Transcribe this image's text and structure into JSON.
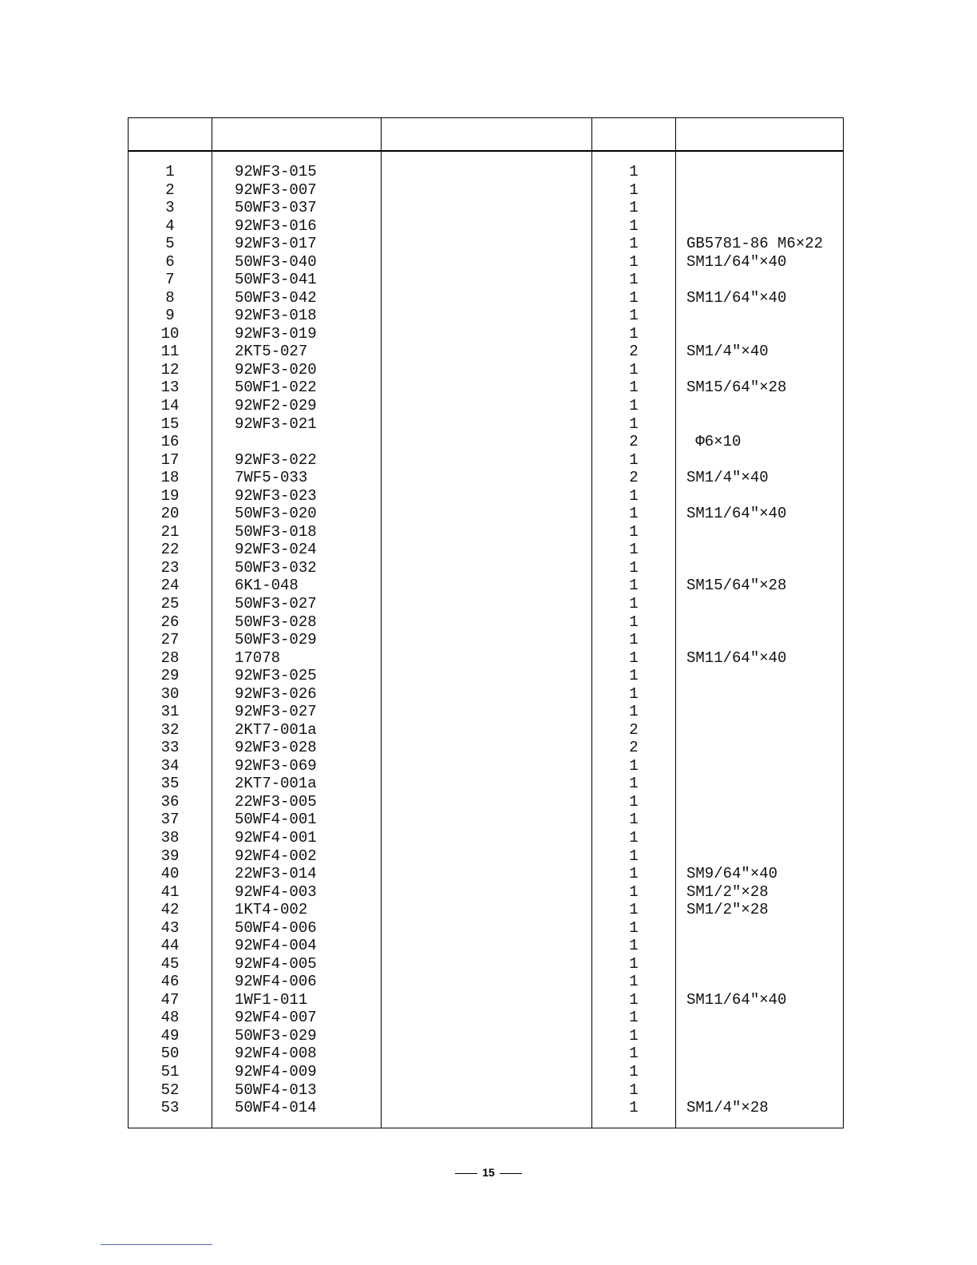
{
  "table": {
    "rows": [
      {
        "no": "1",
        "part": "92WF3-015",
        "qty": "1",
        "remark": ""
      },
      {
        "no": "2",
        "part": "92WF3-007",
        "qty": "1",
        "remark": ""
      },
      {
        "no": "3",
        "part": "50WF3-037",
        "qty": "1",
        "remark": ""
      },
      {
        "no": "4",
        "part": "92WF3-016",
        "qty": "1",
        "remark": ""
      },
      {
        "no": "5",
        "part": "92WF3-017",
        "qty": "1",
        "remark": "GB5781-86 M6×22"
      },
      {
        "no": "6",
        "part": "50WF3-040",
        "qty": "1",
        "remark": "SM11/64″×40"
      },
      {
        "no": "7",
        "part": "50WF3-041",
        "qty": "1",
        "remark": ""
      },
      {
        "no": "8",
        "part": "50WF3-042",
        "qty": "1",
        "remark": "SM11/64″×40"
      },
      {
        "no": "9",
        "part": "92WF3-018",
        "qty": "1",
        "remark": ""
      },
      {
        "no": "10",
        "part": "92WF3-019",
        "qty": "1",
        "remark": ""
      },
      {
        "no": "11",
        "part": "2KT5-027",
        "qty": "2",
        "remark": "SM1/4″×40"
      },
      {
        "no": "12",
        "part": "92WF3-020",
        "qty": "1",
        "remark": ""
      },
      {
        "no": "13",
        "part": "50WF1-022",
        "qty": "1",
        "remark": "SM15/64″×28"
      },
      {
        "no": "14",
        "part": "92WF2-029",
        "qty": "1",
        "remark": ""
      },
      {
        "no": "15",
        "part": "92WF3-021",
        "qty": "1",
        "remark": ""
      },
      {
        "no": "16",
        "part": "",
        "qty": "2",
        "remark": " Φ6×10"
      },
      {
        "no": "17",
        "part": "92WF3-022",
        "qty": "1",
        "remark": ""
      },
      {
        "no": "18",
        "part": "7WF5-033",
        "qty": "2",
        "remark": "SM1/4″×40"
      },
      {
        "no": "19",
        "part": "92WF3-023",
        "qty": "1",
        "remark": ""
      },
      {
        "no": "20",
        "part": "50WF3-020",
        "qty": "1",
        "remark": "SM11/64″×40"
      },
      {
        "no": "21",
        "part": "50WF3-018",
        "qty": "1",
        "remark": ""
      },
      {
        "no": "22",
        "part": "92WF3-024",
        "qty": "1",
        "remark": ""
      },
      {
        "no": "23",
        "part": "50WF3-032",
        "qty": "1",
        "remark": ""
      },
      {
        "no": "24",
        "part": "6K1-048",
        "qty": "1",
        "remark": "SM15/64″×28"
      },
      {
        "no": "25",
        "part": "50WF3-027",
        "qty": "1",
        "remark": ""
      },
      {
        "no": "26",
        "part": "50WF3-028",
        "qty": "1",
        "remark": ""
      },
      {
        "no": "27",
        "part": "50WF3-029",
        "qty": "1",
        "remark": ""
      },
      {
        "no": "28",
        "part": "17078",
        "qty": "1",
        "remark": "SM11/64″×40"
      },
      {
        "no": "29",
        "part": "92WF3-025",
        "qty": "1",
        "remark": ""
      },
      {
        "no": "30",
        "part": "92WF3-026",
        "qty": "1",
        "remark": ""
      },
      {
        "no": "31",
        "part": "92WF3-027",
        "qty": "1",
        "remark": ""
      },
      {
        "no": "32",
        "part": "2KT7-001a",
        "qty": "2",
        "remark": ""
      },
      {
        "no": "33",
        "part": "92WF3-028",
        "qty": "2",
        "remark": ""
      },
      {
        "no": "34",
        "part": "92WF3-069",
        "qty": "1",
        "remark": ""
      },
      {
        "no": "35",
        "part": "2KT7-001a",
        "qty": "1",
        "remark": ""
      },
      {
        "no": "36",
        "part": "22WF3-005",
        "qty": "1",
        "remark": ""
      },
      {
        "no": "37",
        "part": "50WF4-001",
        "qty": "1",
        "remark": ""
      },
      {
        "no": "38",
        "part": "92WF4-001",
        "qty": "1",
        "remark": ""
      },
      {
        "no": "39",
        "part": "92WF4-002",
        "qty": "1",
        "remark": ""
      },
      {
        "no": "40",
        "part": "22WF3-014",
        "qty": "1",
        "remark": "SM9/64″×40"
      },
      {
        "no": "41",
        "part": "92WF4-003",
        "qty": "1",
        "remark": "SM1/2″×28"
      },
      {
        "no": "42",
        "part": "1KT4-002",
        "qty": "1",
        "remark": "SM1/2″×28"
      },
      {
        "no": "43",
        "part": "50WF4-006",
        "qty": "1",
        "remark": ""
      },
      {
        "no": "44",
        "part": "92WF4-004",
        "qty": "1",
        "remark": ""
      },
      {
        "no": "45",
        "part": "92WF4-005",
        "qty": "1",
        "remark": ""
      },
      {
        "no": "46",
        "part": "92WF4-006",
        "qty": "1",
        "remark": ""
      },
      {
        "no": "47",
        "part": "1WF1-011",
        "qty": "1",
        "remark": "SM11/64″×40"
      },
      {
        "no": "48",
        "part": "92WF4-007",
        "qty": "1",
        "remark": ""
      },
      {
        "no": "49",
        "part": "50WF3-029",
        "qty": "1",
        "remark": ""
      },
      {
        "no": "50",
        "part": "92WF4-008",
        "qty": "1",
        "remark": ""
      },
      {
        "no": "51",
        "part": "92WF4-009",
        "qty": "1",
        "remark": ""
      },
      {
        "no": "52",
        "part": "50WF4-013",
        "qty": "1",
        "remark": ""
      },
      {
        "no": "53",
        "part": "50WF4-014",
        "qty": "1",
        "remark": "SM1/4″×28"
      }
    ]
  },
  "footer": {
    "page_number": "15"
  }
}
